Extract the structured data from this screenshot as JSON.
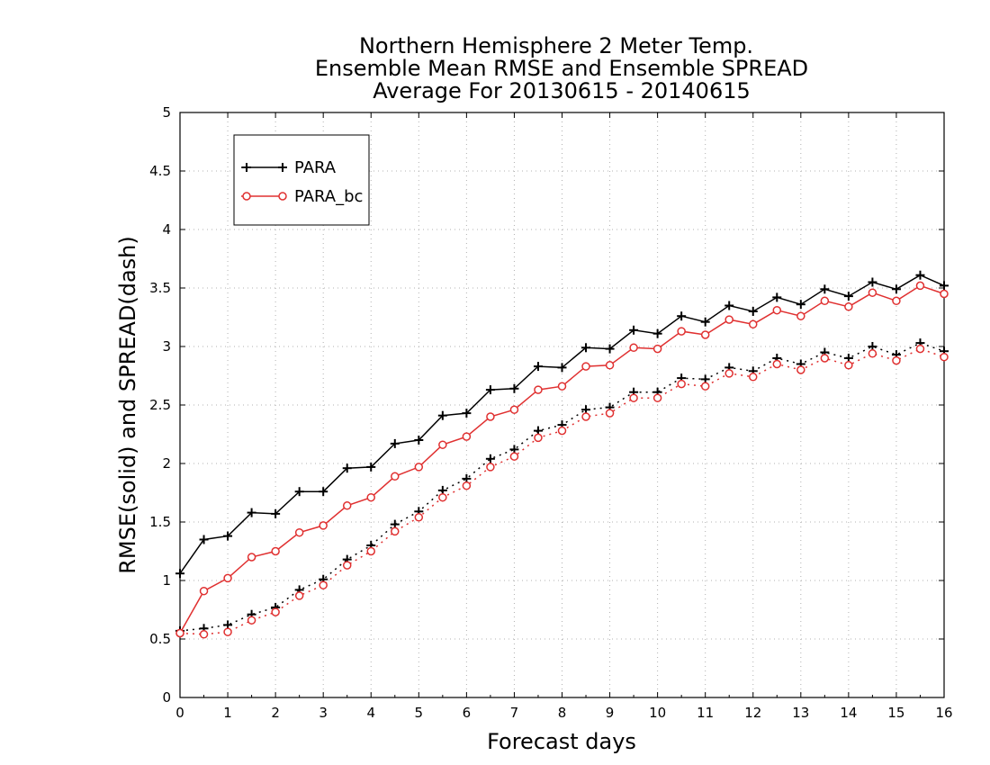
{
  "chart_data": {
    "type": "line",
    "title": [
      "Northern Hemisphere 2 Meter Temp.",
      "Ensemble Mean RMSE and Ensemble SPREAD",
      "Average For 20130615 - 20140615"
    ],
    "xlabel": "Forecast days",
    "ylabel": "RMSE(solid) and SPREAD(dash)",
    "xlim": [
      0,
      16
    ],
    "ylim": [
      0,
      5
    ],
    "xticks": [
      "0",
      "1",
      "2",
      "3",
      "4",
      "5",
      "6",
      "7",
      "8",
      "9",
      "10",
      "11",
      "12",
      "13",
      "14",
      "15",
      "16"
    ],
    "yticks": [
      "0",
      "0.5",
      "1",
      "1.5",
      "2",
      "2.5",
      "3",
      "3.5",
      "4",
      "4.5",
      "5"
    ],
    "grid": true,
    "legend_position": "top-left",
    "x": [
      0,
      0.5,
      1,
      1.5,
      2,
      2.5,
      3,
      3.5,
      4,
      4.5,
      5,
      5.5,
      6,
      6.5,
      7,
      7.5,
      8,
      8.5,
      9,
      9.5,
      10,
      10.5,
      11,
      11.5,
      12,
      12.5,
      13,
      13.5,
      14,
      14.5,
      15,
      15.5,
      16
    ],
    "series": [
      {
        "name": "PARA",
        "metric": "RMSE",
        "style": "solid",
        "color": "#000000",
        "marker": "plus",
        "values": [
          1.06,
          1.35,
          1.38,
          1.58,
          1.57,
          1.76,
          1.76,
          1.96,
          1.97,
          2.17,
          2.2,
          2.41,
          2.43,
          2.63,
          2.64,
          2.83,
          2.82,
          2.99,
          2.98,
          3.14,
          3.11,
          3.26,
          3.21,
          3.35,
          3.3,
          3.42,
          3.36,
          3.49,
          3.43,
          3.55,
          3.49,
          3.61,
          3.52
        ]
      },
      {
        "name": "PARA_bc",
        "metric": "RMSE",
        "style": "solid",
        "color": "#e03030",
        "marker": "circle",
        "values": [
          0.55,
          0.91,
          1.02,
          1.2,
          1.25,
          1.41,
          1.47,
          1.64,
          1.71,
          1.89,
          1.97,
          2.16,
          2.23,
          2.4,
          2.46,
          2.63,
          2.66,
          2.83,
          2.84,
          2.99,
          2.98,
          3.13,
          3.1,
          3.23,
          3.19,
          3.31,
          3.26,
          3.39,
          3.34,
          3.46,
          3.39,
          3.52,
          3.45
        ]
      },
      {
        "name": "PARA",
        "metric": "SPREAD",
        "style": "dash",
        "color": "#000000",
        "marker": "plus",
        "values": [
          0.57,
          0.59,
          0.62,
          0.71,
          0.77,
          0.92,
          1.01,
          1.18,
          1.3,
          1.48,
          1.59,
          1.77,
          1.87,
          2.04,
          2.12,
          2.28,
          2.33,
          2.46,
          2.48,
          2.61,
          2.61,
          2.73,
          2.72,
          2.82,
          2.79,
          2.9,
          2.85,
          2.95,
          2.9,
          3.0,
          2.93,
          3.03,
          2.96
        ]
      },
      {
        "name": "PARA_bc",
        "metric": "SPREAD",
        "style": "dash",
        "color": "#e03030",
        "marker": "circle",
        "values": [
          0.55,
          0.54,
          0.56,
          0.66,
          0.73,
          0.87,
          0.96,
          1.13,
          1.25,
          1.42,
          1.54,
          1.71,
          1.81,
          1.97,
          2.06,
          2.22,
          2.28,
          2.4,
          2.43,
          2.56,
          2.56,
          2.68,
          2.66,
          2.77,
          2.74,
          2.85,
          2.8,
          2.9,
          2.84,
          2.94,
          2.88,
          2.98,
          2.91
        ]
      }
    ],
    "legend": [
      {
        "label": "PARA",
        "color": "#000000",
        "marker": "plus"
      },
      {
        "label": "PARA_bc",
        "color": "#e03030",
        "marker": "circle"
      }
    ]
  }
}
